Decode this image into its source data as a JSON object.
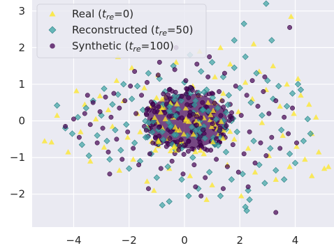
{
  "chart_data": {
    "type": "scatter",
    "title": "",
    "xlabel": "",
    "ylabel": "",
    "xlim": [
      -5.5,
      5.4
    ],
    "ylim": [
      -2.9,
      3.3
    ],
    "xticks": [
      -4,
      -2,
      0,
      2,
      4
    ],
    "yticks": [
      -2,
      -1,
      0,
      1,
      2,
      3
    ],
    "xtick_labels": [
      "−4",
      "−2",
      "0",
      "2",
      "4"
    ],
    "ytick_labels": [
      "−2",
      "−1",
      "0",
      "1",
      "2",
      "3"
    ],
    "grid": true,
    "legend_position": "top-left",
    "background": "#eaeaf2",
    "series": [
      {
        "legend": {
          "prefix": "Real (",
          "var": "t",
          "sub": "re",
          "suffix": "=0)"
        },
        "marker": "triangle",
        "color": "#fde725",
        "points": [
          [
            -5.05,
            -0.55
          ],
          [
            -4.8,
            -0.58
          ],
          [
            -4.6,
            0.15
          ],
          [
            -4.2,
            -0.85
          ],
          [
            -3.9,
            0.82
          ],
          [
            -3.75,
            -0.3
          ],
          [
            -3.6,
            0.45
          ],
          [
            -3.4,
            -1.1
          ],
          [
            -3.2,
            0.05
          ],
          [
            -3.05,
            0.68
          ],
          [
            -2.9,
            -0.72
          ],
          [
            -2.75,
            0.3
          ],
          [
            -2.6,
            -0.15
          ],
          [
            -2.45,
            1.1
          ],
          [
            -2.35,
            -1.35
          ],
          [
            -2.2,
            0.55
          ],
          [
            -2.05,
            -0.45
          ],
          [
            -1.9,
            1.45
          ],
          [
            -1.85,
            -1.05
          ],
          [
            -1.7,
            0.2
          ],
          [
            -1.6,
            -0.3
          ],
          [
            -1.45,
            0.9
          ],
          [
            -1.35,
            -1.65
          ],
          [
            -1.2,
            0.4
          ],
          [
            -1.05,
            -0.8
          ],
          [
            -0.95,
            1.25
          ],
          [
            -0.8,
            -0.2
          ],
          [
            -0.7,
            0.65
          ],
          [
            -0.55,
            -1.3
          ],
          [
            -0.4,
            0.1
          ],
          [
            -0.3,
            1.6
          ],
          [
            -0.15,
            -0.6
          ],
          [
            0.05,
            0.35
          ],
          [
            0.2,
            -1.5
          ],
          [
            0.3,
            0.95
          ],
          [
            0.45,
            -0.1
          ],
          [
            0.55,
            1.9
          ],
          [
            0.7,
            -0.9
          ],
          [
            0.85,
            0.5
          ],
          [
            1.0,
            -1.75
          ],
          [
            1.1,
            1.2
          ],
          [
            1.25,
            -0.35
          ],
          [
            1.4,
            0.75
          ],
          [
            1.55,
            -1.2
          ],
          [
            1.65,
            1.55
          ],
          [
            1.8,
            -0.5
          ],
          [
            1.95,
            0.25
          ],
          [
            2.05,
            -2.05
          ],
          [
            2.2,
            1.05
          ],
          [
            2.3,
            -0.75
          ],
          [
            2.45,
            0.6
          ],
          [
            2.55,
            -1.4
          ],
          [
            2.7,
            1.35
          ],
          [
            2.8,
            -0.05
          ],
          [
            2.95,
            0.85
          ],
          [
            3.05,
            -0.95
          ],
          [
            3.2,
            1.5
          ],
          [
            3.3,
            -1.6
          ],
          [
            3.45,
            0.4
          ],
          [
            3.55,
            -0.4
          ],
          [
            3.7,
            1.0
          ],
          [
            3.8,
            -1.25
          ],
          [
            3.95,
            0.2
          ],
          [
            4.05,
            -0.7
          ],
          [
            4.2,
            0.7
          ],
          [
            4.35,
            -1.05
          ],
          [
            4.5,
            0.45
          ],
          [
            4.6,
            -1.5
          ],
          [
            4.75,
            0.1
          ],
          [
            4.85,
            -0.85
          ],
          [
            5.05,
            -1.3
          ],
          [
            5.2,
            -1.25
          ],
          [
            3.85,
            2.85
          ],
          [
            2.5,
            2.1
          ],
          [
            1.3,
            2.0
          ],
          [
            -2.4,
            1.75
          ],
          [
            4.6,
            -0.35
          ],
          [
            4.1,
            1.15
          ],
          [
            -1.1,
            -1.9
          ],
          [
            0.8,
            -2.15
          ]
        ]
      },
      {
        "legend": {
          "prefix": "Reconstructed (",
          "var": "t",
          "sub": "re",
          "suffix": "=50)"
        },
        "marker": "diamond",
        "color": "#3aa4a4",
        "points": [
          [
            -4.6,
            0.42
          ],
          [
            -4.3,
            -0.2
          ],
          [
            -4.05,
            -0.35
          ],
          [
            -3.85,
            0.1
          ],
          [
            -3.7,
            -0.65
          ],
          [
            -3.55,
            0.35
          ],
          [
            -3.45,
            -0.95
          ],
          [
            -3.3,
            0.55
          ],
          [
            -3.15,
            -0.4
          ],
          [
            -3.0,
            0.15
          ],
          [
            -2.9,
            0.88
          ],
          [
            -2.8,
            -0.55
          ],
          [
            -2.7,
            -1.05
          ],
          [
            -2.6,
            0.45
          ],
          [
            -2.5,
            -0.25
          ],
          [
            -2.4,
            0.72
          ],
          [
            -2.3,
            -0.8
          ],
          [
            -2.2,
            1.0
          ],
          [
            -2.1,
            -0.1
          ],
          [
            -2.0,
            -1.3
          ],
          [
            -1.9,
            0.6
          ],
          [
            -1.8,
            -0.6
          ],
          [
            -1.7,
            0.95
          ],
          [
            -1.6,
            -1.1
          ],
          [
            -1.5,
            0.3
          ],
          [
            -1.4,
            -0.45
          ],
          [
            -1.3,
            1.3
          ],
          [
            -1.2,
            -0.9
          ],
          [
            -1.1,
            0.5
          ],
          [
            -1.0,
            -1.55
          ],
          [
            -0.9,
            1.15
          ],
          [
            -0.8,
            -0.3
          ],
          [
            -0.7,
            0.8
          ],
          [
            -0.6,
            -1.25
          ],
          [
            -0.5,
            0.2
          ],
          [
            -0.4,
            1.5
          ],
          [
            -0.3,
            -0.7
          ],
          [
            -0.2,
            0.65
          ],
          [
            -0.1,
            -1.6
          ],
          [
            0.0,
            1.05
          ],
          [
            0.1,
            -0.4
          ],
          [
            0.2,
            1.8
          ],
          [
            0.3,
            -1.0
          ],
          [
            0.4,
            0.55
          ],
          [
            0.5,
            -1.85
          ],
          [
            0.6,
            1.35
          ],
          [
            0.7,
            -0.15
          ],
          [
            0.8,
            0.85
          ],
          [
            0.9,
            -1.4
          ],
          [
            1.0,
            1.6
          ],
          [
            1.1,
            -0.65
          ],
          [
            1.2,
            0.35
          ],
          [
            1.3,
            -2.05
          ],
          [
            1.4,
            1.2
          ],
          [
            1.5,
            -0.85
          ],
          [
            1.6,
            0.7
          ],
          [
            1.7,
            -1.6
          ],
          [
            1.8,
            1.45
          ],
          [
            1.9,
            -0.3
          ],
          [
            2.0,
            0.9
          ],
          [
            2.1,
            -1.45
          ],
          [
            2.2,
            1.75
          ],
          [
            2.3,
            -1.9
          ],
          [
            2.4,
            0.5
          ],
          [
            2.5,
            -0.55
          ],
          [
            2.6,
            1.3
          ],
          [
            2.7,
            -1.2
          ],
          [
            2.8,
            0.15
          ],
          [
            2.9,
            -1.7
          ],
          [
            3.0,
            1.1
          ],
          [
            3.1,
            -0.75
          ],
          [
            3.2,
            0.6
          ],
          [
            3.3,
            -1.35
          ],
          [
            3.4,
            0.95
          ],
          [
            3.5,
            -0.25
          ],
          [
            3.6,
            -1.6
          ],
          [
            3.7,
            0.4
          ],
          [
            3.8,
            -0.9
          ],
          [
            3.9,
            0.75
          ],
          [
            4.0,
            -1.15
          ],
          [
            4.1,
            1.0
          ],
          [
            4.2,
            0.85
          ],
          [
            4.3,
            -0.55
          ],
          [
            4.45,
            0.05
          ],
          [
            4.55,
            -0.35
          ],
          [
            -0.8,
            -2.3
          ],
          [
            2.2,
            -2.35
          ],
          [
            2.95,
            3.2
          ],
          [
            2.15,
            2.65
          ],
          [
            3.15,
            2.2
          ],
          [
            2.35,
            -2.15
          ],
          [
            1.8,
            2.2
          ],
          [
            -0.55,
            -2.2
          ],
          [
            0.15,
            -2.05
          ],
          [
            2.25,
            -2.45
          ]
        ]
      },
      {
        "legend": {
          "prefix": "Synthetic (",
          "var": "t",
          "sub": "re",
          "suffix": "=100)"
        },
        "marker": "circle",
        "color": "#440154",
        "points": [
          [
            -4.3,
            -0.15
          ],
          [
            -4.0,
            0.05
          ],
          [
            -3.8,
            -0.45
          ],
          [
            -3.6,
            0.2
          ],
          [
            -3.4,
            -0.1
          ],
          [
            -3.3,
            0.5
          ],
          [
            -3.15,
            -0.6
          ],
          [
            -3.05,
            0.25
          ],
          [
            -2.95,
            -0.2
          ],
          [
            -2.85,
            0.65
          ],
          [
            -2.75,
            -0.85
          ],
          [
            -2.65,
            0.1
          ],
          [
            -2.55,
            0.75
          ],
          [
            -2.45,
            -0.5
          ],
          [
            -2.35,
            0.35
          ],
          [
            -2.25,
            -1.05
          ],
          [
            -2.15,
            0.55
          ],
          [
            -2.05,
            -0.3
          ],
          [
            -1.95,
            0.95
          ],
          [
            -1.85,
            -0.75
          ],
          [
            -1.75,
            0.2
          ],
          [
            -1.65,
            -1.2
          ],
          [
            -1.55,
            0.7
          ],
          [
            -1.45,
            -0.15
          ],
          [
            -1.35,
            1.05
          ],
          [
            -1.25,
            -0.9
          ],
          [
            -1.15,
            0.45
          ],
          [
            -1.05,
            -0.45
          ],
          [
            -0.95,
            1.25
          ],
          [
            -0.85,
            -1.3
          ],
          [
            -0.75,
            0.3
          ],
          [
            -0.65,
            -0.7
          ],
          [
            -0.55,
            0.85
          ],
          [
            -0.45,
            -1.1
          ],
          [
            -0.35,
            1.4
          ],
          [
            -0.25,
            -0.25
          ],
          [
            -0.15,
            0.6
          ],
          [
            -0.05,
            -1.45
          ],
          [
            0.05,
            1.1
          ],
          [
            0.15,
            -0.55
          ],
          [
            0.25,
            0.9
          ],
          [
            0.35,
            -1.2
          ],
          [
            0.45,
            1.55
          ],
          [
            0.55,
            -0.35
          ],
          [
            0.65,
            0.5
          ],
          [
            0.75,
            -1.55
          ],
          [
            0.85,
            1.2
          ],
          [
            0.95,
            -0.8
          ],
          [
            1.05,
            0.25
          ],
          [
            1.15,
            -1.05
          ],
          [
            1.25,
            0.8
          ],
          [
            1.35,
            -0.4
          ],
          [
            1.45,
            1.3
          ],
          [
            1.55,
            -1.25
          ],
          [
            1.65,
            0.45
          ],
          [
            1.75,
            -0.65
          ],
          [
            1.85,
            0.95
          ],
          [
            1.95,
            -1.4
          ],
          [
            2.05,
            0.15
          ],
          [
            2.15,
            -0.9
          ],
          [
            2.25,
            0.7
          ],
          [
            2.35,
            -0.3
          ],
          [
            2.45,
            1.1
          ],
          [
            2.55,
            -1.15
          ],
          [
            2.65,
            0.4
          ],
          [
            2.75,
            -0.6
          ],
          [
            2.85,
            0.8
          ],
          [
            2.95,
            -0.95
          ],
          [
            3.05,
            0.2
          ],
          [
            3.15,
            -0.45
          ],
          [
            3.3,
            0.55
          ],
          [
            3.45,
            -0.75
          ],
          [
            3.6,
            0.1
          ],
          [
            3.75,
            -0.35
          ],
          [
            3.9,
            0.35
          ],
          [
            4.05,
            -0.6
          ],
          [
            -1.3,
            -1.85
          ],
          [
            0.6,
            -2.05
          ],
          [
            -0.3,
            2.0
          ],
          [
            3.3,
            -2.5
          ],
          [
            3.8,
            2.55
          ],
          [
            -2.7,
            -1.45
          ],
          [
            0.9,
            1.75
          ],
          [
            2.3,
            -1.8
          ],
          [
            -1.8,
            1.35
          ],
          [
            1.4,
            -1.85
          ],
          [
            -0.9,
            1.6
          ],
          [
            0.4,
            -1.8
          ],
          [
            2.9,
            1.2
          ],
          [
            -3.5,
            0.7
          ]
        ]
      }
    ],
    "dense_core": {
      "color": "#440154",
      "cx": 0.1,
      "cy": 0.0,
      "rx": 1.45,
      "ry": 0.75
    }
  }
}
